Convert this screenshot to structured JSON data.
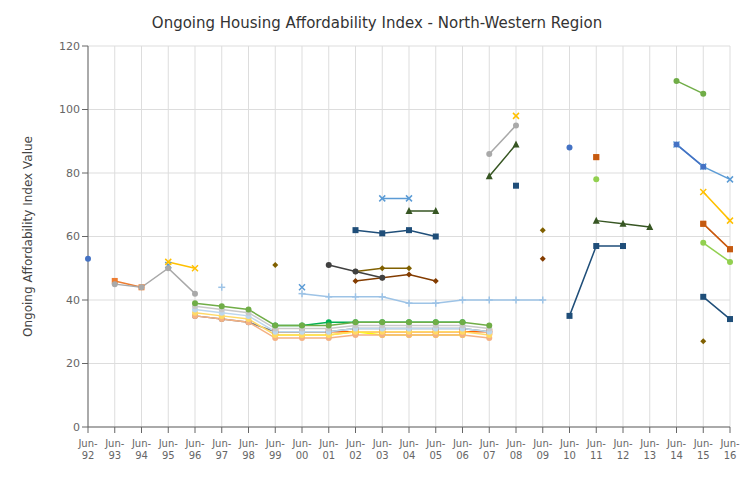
{
  "chart_data": {
    "type": "line",
    "title": "Ongoing Housing Affordability Index - North-Western Region",
    "ylabel": "Ongoing Affordability Index Value",
    "categories": [
      "Jun-\n92",
      "Jun-\n93",
      "Jun-\n94",
      "Jun-\n95",
      "Jun-\n96",
      "Jun-\n97",
      "Jun-\n98",
      "Jun-\n99",
      "Jun-\n00",
      "Jun-\n01",
      "Jun-\n02",
      "Jun-\n03",
      "Jun-\n04",
      "Jun-\n05",
      "Jun-\n06",
      "Jun-\n07",
      "Jun-\n08",
      "Jun-\n09",
      "Jun-\n10",
      "Jun-\n11",
      "Jun-\n12",
      "Jun-\n13",
      "Jun-\n14",
      "Jun-\n15",
      "Jun-\n16"
    ],
    "ylim": [
      0,
      120
    ],
    "yticks": [
      0,
      20,
      40,
      60,
      80,
      100,
      120
    ],
    "grid": true,
    "series": [
      {
        "color": "#1F4E79",
        "marker": "square",
        "values": [
          null,
          null,
          null,
          null,
          null,
          null,
          null,
          null,
          null,
          null,
          62,
          61,
          62,
          60,
          null,
          null,
          76,
          null,
          35,
          57,
          57,
          null,
          null,
          41,
          34
        ]
      },
      {
        "color": "#375623",
        "marker": "triangle",
        "values": [
          null,
          null,
          null,
          null,
          null,
          null,
          null,
          null,
          null,
          null,
          null,
          null,
          68,
          68,
          null,
          79,
          89,
          null,
          null,
          65,
          64,
          63,
          null,
          null,
          null
        ]
      },
      {
        "color": "#5B9BD5",
        "marker": "x",
        "values": [
          null,
          null,
          null,
          51,
          null,
          null,
          null,
          null,
          44,
          null,
          null,
          72,
          72,
          null,
          null,
          null,
          null,
          null,
          null,
          null,
          null,
          null,
          89,
          82,
          78
        ]
      },
      {
        "color": "#4472C4",
        "marker": "circle",
        "values": [
          53,
          null,
          null,
          null,
          null,
          null,
          null,
          null,
          null,
          null,
          null,
          null,
          null,
          null,
          null,
          null,
          null,
          null,
          88,
          null,
          null,
          null,
          89,
          82,
          null
        ]
      },
      {
        "color": "#ED7D31",
        "marker": "square",
        "values": [
          null,
          46,
          44,
          null,
          null,
          null,
          null,
          null,
          null,
          null,
          null,
          null,
          null,
          null,
          null,
          null,
          null,
          null,
          null,
          85,
          null,
          null,
          null,
          64,
          56
        ]
      },
      {
        "color": "#A9A9A9",
        "marker": "circle",
        "values": [
          null,
          45,
          44,
          50,
          42,
          null,
          null,
          null,
          null,
          null,
          null,
          null,
          null,
          null,
          null,
          86,
          95,
          null,
          null,
          null,
          null,
          null,
          null,
          null,
          null
        ]
      },
      {
        "color": "#FFC000",
        "marker": "x",
        "values": [
          null,
          null,
          null,
          52,
          50,
          null,
          null,
          null,
          null,
          null,
          null,
          null,
          null,
          null,
          null,
          null,
          98,
          null,
          null,
          null,
          null,
          null,
          null,
          74,
          65
        ]
      },
      {
        "color": "#70AD47",
        "marker": "circle",
        "values": [
          null,
          null,
          null,
          null,
          null,
          null,
          null,
          null,
          null,
          null,
          null,
          null,
          null,
          null,
          null,
          null,
          null,
          null,
          null,
          null,
          null,
          null,
          109,
          105,
          null
        ]
      },
      {
        "color": "#833C00",
        "marker": "diamond",
        "values": [
          null,
          null,
          null,
          null,
          null,
          null,
          null,
          null,
          null,
          null,
          46,
          47,
          48,
          46,
          null,
          null,
          null,
          53,
          null,
          null,
          null,
          null,
          null,
          null,
          null
        ]
      },
      {
        "color": "#806000",
        "marker": "diamond",
        "values": [
          null,
          null,
          null,
          null,
          null,
          null,
          null,
          51,
          null,
          null,
          49,
          50,
          50,
          null,
          null,
          null,
          null,
          62,
          null,
          null,
          null,
          null,
          null,
          27,
          null
        ]
      },
      {
        "color": "#404040",
        "marker": "circle",
        "values": [
          null,
          null,
          null,
          null,
          null,
          null,
          null,
          null,
          null,
          51,
          49,
          47,
          null,
          null,
          null,
          null,
          null,
          null,
          null,
          null,
          null,
          null,
          null,
          null,
          null
        ]
      },
      {
        "color": "#92D050",
        "marker": "circle",
        "values": [
          null,
          null,
          null,
          null,
          null,
          null,
          null,
          null,
          null,
          null,
          null,
          null,
          null,
          null,
          null,
          null,
          null,
          null,
          null,
          78,
          null,
          null,
          null,
          58,
          52
        ]
      },
      {
        "color": "#FF6600",
        "marker": "square",
        "values": [
          null,
          null,
          null,
          null,
          null,
          null,
          null,
          30,
          30,
          30,
          30,
          30,
          30,
          30,
          30,
          30,
          null,
          null,
          null,
          null,
          null,
          null,
          null,
          null,
          null
        ]
      },
      {
        "color": "#00B050",
        "marker": "circle",
        "values": [
          null,
          null,
          null,
          null,
          null,
          null,
          null,
          32,
          32,
          33,
          33,
          33,
          33,
          33,
          33,
          null,
          null,
          null,
          null,
          null,
          null,
          null,
          null,
          null,
          null
        ]
      },
      {
        "color": "#FFFF00",
        "marker": "circle",
        "values": [
          null,
          null,
          null,
          null,
          null,
          null,
          null,
          29,
          29,
          29,
          30,
          29,
          29,
          29,
          29,
          null,
          null,
          null,
          null,
          null,
          null,
          null,
          null,
          null,
          null
        ]
      },
      {
        "color": "#9DC3E6",
        "marker": "plus",
        "values": [
          null,
          null,
          null,
          null,
          null,
          44,
          null,
          null,
          42,
          41,
          41,
          41,
          39,
          39,
          40,
          40,
          40,
          40,
          null,
          null,
          null,
          null,
          null,
          null,
          null
        ]
      },
      {
        "color": "#C55A11",
        "marker": "square",
        "values": [
          null,
          null,
          null,
          null,
          null,
          null,
          null,
          null,
          null,
          null,
          null,
          null,
          null,
          null,
          null,
          null,
          null,
          null,
          null,
          85,
          null,
          null,
          null,
          64,
          56
        ]
      },
      {
        "color": "#7F7F7F",
        "marker": "circle",
        "values": [
          null,
          null,
          null,
          null,
          35,
          34,
          33,
          30,
          30,
          30,
          31,
          31,
          31,
          31,
          31,
          30,
          null,
          null,
          null,
          null,
          null,
          null,
          null,
          null,
          null
        ]
      },
      {
        "color": "#F4B183",
        "marker": "circle",
        "values": [
          null,
          null,
          null,
          null,
          35,
          34,
          33,
          28,
          28,
          28,
          29,
          29,
          29,
          29,
          29,
          28,
          null,
          null,
          null,
          null,
          null,
          null,
          null,
          null,
          null
        ]
      },
      {
        "color": "#FFD966",
        "marker": "circle",
        "values": [
          null,
          null,
          null,
          null,
          36,
          35,
          34,
          29,
          29,
          29,
          30,
          30,
          30,
          30,
          30,
          29,
          null,
          null,
          null,
          null,
          null,
          null,
          null,
          null,
          null
        ]
      },
      {
        "color": "#BDD7EE",
        "marker": "circle",
        "values": [
          null,
          null,
          null,
          null,
          37,
          36,
          35,
          30,
          30,
          30,
          31,
          31,
          31,
          31,
          31,
          30,
          null,
          null,
          null,
          null,
          null,
          null,
          null,
          null,
          null
        ]
      },
      {
        "color": "#C9C9C9",
        "marker": "circle",
        "values": [
          null,
          null,
          null,
          null,
          38,
          37,
          36,
          31,
          31,
          31,
          32,
          32,
          32,
          32,
          32,
          31,
          null,
          null,
          null,
          null,
          null,
          null,
          null,
          null,
          null
        ]
      },
      {
        "color": "#70AD47",
        "marker": "circle",
        "values": [
          null,
          null,
          null,
          null,
          39,
          38,
          37,
          32,
          32,
          32,
          33,
          33,
          33,
          33,
          33,
          32,
          null,
          null,
          null,
          null,
          null,
          null,
          null,
          null,
          null
        ]
      },
      {
        "color": "#FF0000",
        "marker": "circle",
        "values": [
          null,
          null,
          null,
          null,
          null,
          null,
          null,
          null,
          null,
          null,
          null,
          null,
          null,
          null,
          null,
          null,
          null,
          null,
          null,
          null,
          null,
          null,
          null,
          null,
          null
        ]
      }
    ]
  }
}
